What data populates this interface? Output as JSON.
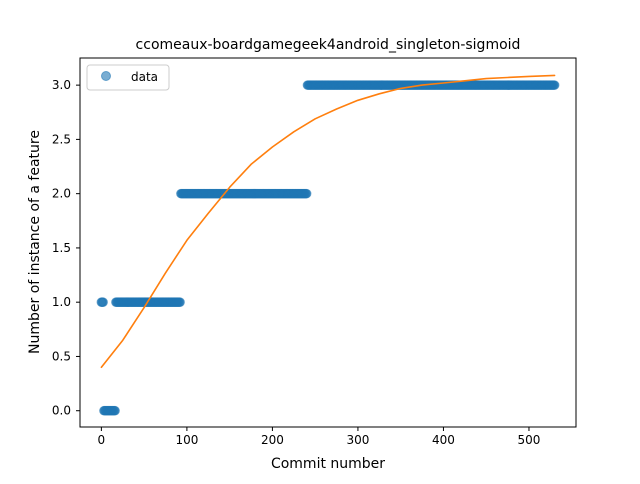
{
  "chart_data": {
    "type": "scatter",
    "title": "ccomeaux-boardgamegeek4android_singleton-sigmoid",
    "xlabel": "Commit number",
    "ylabel": "Number of instance of a feature",
    "xlim": [
      -25,
      555
    ],
    "ylim": [
      -0.15,
      3.25
    ],
    "x_ticks": [
      0,
      100,
      200,
      300,
      400,
      500
    ],
    "y_ticks": [
      0.0,
      0.5,
      1.0,
      1.5,
      2.0,
      2.5,
      3.0
    ],
    "x_tick_labels": [
      "0",
      "100",
      "200",
      "300",
      "400",
      "500"
    ],
    "y_tick_labels": [
      "0.0",
      "0.5",
      "1.0",
      "1.5",
      "2.0",
      "2.5",
      "3.0"
    ],
    "grid": false,
    "legend": {
      "position": "top-left",
      "entries": [
        "data"
      ]
    },
    "series": [
      {
        "name": "data",
        "kind": "scatter",
        "color": "#1f77b4",
        "segments": [
          {
            "x_start": 0,
            "x_end": 2,
            "y": 1
          },
          {
            "x_start": 3,
            "x_end": 16,
            "y": 0
          },
          {
            "x_start": 17,
            "x_end": 92,
            "y": 1
          },
          {
            "x_start": 93,
            "x_end": 240,
            "y": 2
          },
          {
            "x_start": 241,
            "x_end": 530,
            "y": 3
          }
        ]
      },
      {
        "kind": "line",
        "color": "#ff7f0e",
        "x": [
          0,
          25,
          50,
          75,
          100,
          125,
          150,
          175,
          200,
          225,
          250,
          275,
          300,
          325,
          350,
          375,
          400,
          425,
          450,
          475,
          500,
          530
        ],
        "y": [
          0.4,
          0.65,
          0.95,
          1.27,
          1.57,
          1.82,
          2.06,
          2.27,
          2.43,
          2.57,
          2.69,
          2.78,
          2.86,
          2.92,
          2.97,
          3.0,
          3.02,
          3.04,
          3.06,
          3.07,
          3.08,
          3.09
        ]
      }
    ]
  }
}
